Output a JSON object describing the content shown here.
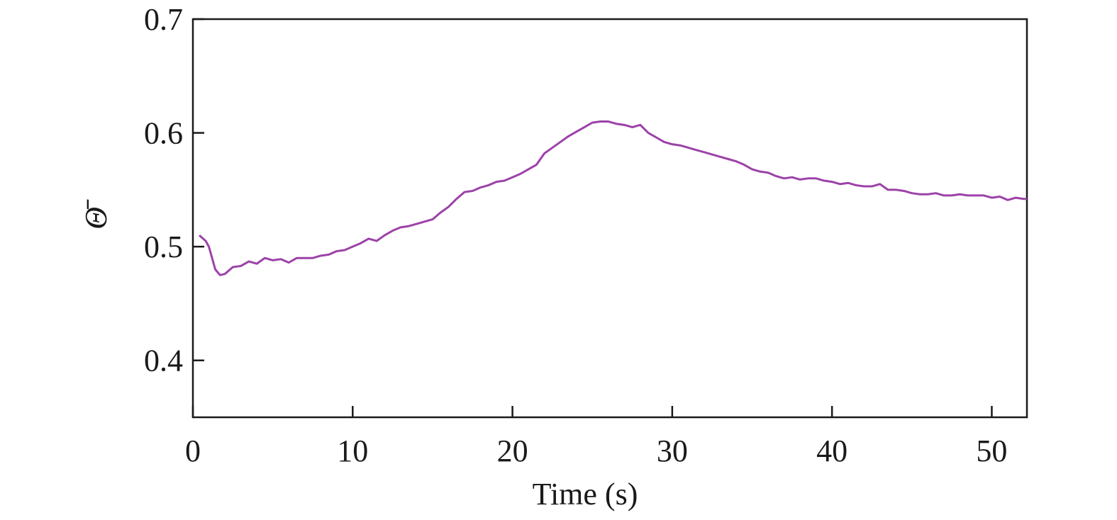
{
  "chart_data": {
    "type": "line",
    "xlabel": "Time (s)",
    "ylabel": "Θ̄",
    "xlim": [
      0,
      52.2
    ],
    "ylim": [
      0.35,
      0.7
    ],
    "xticks": [
      0,
      10,
      20,
      30,
      40,
      50
    ],
    "yticks": [
      0.4,
      0.5,
      0.6,
      0.7
    ],
    "series": [
      {
        "color": "#9c42a8",
        "x": [
          0.4,
          0.8,
          1.0,
          1.2,
          1.4,
          1.7,
          2,
          2.5,
          3,
          3.5,
          4,
          4.5,
          5,
          5.5,
          6,
          6.5,
          7,
          7.5,
          8,
          8.5,
          9,
          9.5,
          10,
          10.5,
          11,
          11.5,
          12,
          12.5,
          13,
          13.5,
          14,
          14.5,
          15,
          15.5,
          16,
          16.5,
          17,
          17.5,
          18,
          18.5,
          19,
          19.5,
          20,
          20.5,
          21,
          21.5,
          22,
          22.5,
          23,
          23.5,
          24,
          24.5,
          25,
          25.5,
          26,
          26.5,
          27,
          27.5,
          28,
          28.5,
          29,
          29.5,
          30,
          30.5,
          31,
          31.5,
          32,
          32.5,
          33,
          33.5,
          34,
          34.5,
          35,
          35.5,
          36,
          36.5,
          37,
          37.5,
          38,
          38.5,
          39,
          39.5,
          40,
          40.5,
          41,
          41.5,
          42,
          42.5,
          43,
          43.5,
          44,
          44.5,
          45,
          45.5,
          46,
          46.5,
          47,
          47.5,
          48,
          48.5,
          49,
          49.5,
          50,
          50.5,
          51,
          51.5,
          52,
          52.2
        ],
        "values": [
          0.51,
          0.505,
          0.5,
          0.49,
          0.48,
          0.475,
          0.476,
          0.482,
          0.483,
          0.487,
          0.485,
          0.49,
          0.488,
          0.489,
          0.486,
          0.49,
          0.49,
          0.49,
          0.492,
          0.493,
          0.496,
          0.497,
          0.5,
          0.503,
          0.507,
          0.505,
          0.51,
          0.514,
          0.517,
          0.518,
          0.52,
          0.522,
          0.524,
          0.53,
          0.535,
          0.542,
          0.548,
          0.549,
          0.552,
          0.554,
          0.557,
          0.558,
          0.561,
          0.564,
          0.568,
          0.572,
          0.582,
          0.587,
          0.592,
          0.597,
          0.601,
          0.605,
          0.609,
          0.61,
          0.61,
          0.608,
          0.607,
          0.605,
          0.607,
          0.6,
          0.596,
          0.592,
          0.59,
          0.589,
          0.587,
          0.585,
          0.583,
          0.581,
          0.579,
          0.577,
          0.575,
          0.572,
          0.568,
          0.566,
          0.565,
          0.562,
          0.56,
          0.561,
          0.559,
          0.56,
          0.56,
          0.558,
          0.557,
          0.555,
          0.556,
          0.554,
          0.553,
          0.553,
          0.555,
          0.55,
          0.55,
          0.549,
          0.547,
          0.546,
          0.546,
          0.547,
          0.545,
          0.545,
          0.546,
          0.545,
          0.545,
          0.545,
          0.543,
          0.544,
          0.541,
          0.543,
          0.542,
          0.542
        ]
      }
    ]
  }
}
